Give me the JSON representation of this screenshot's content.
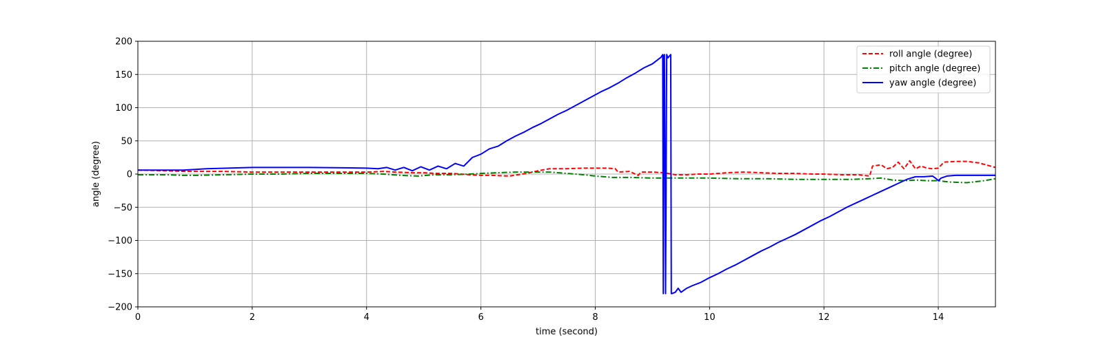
{
  "chart_data": {
    "type": "line",
    "title": "",
    "xlabel": "time (second)",
    "ylabel": "angle (degree)",
    "xlim": [
      0,
      15
    ],
    "ylim": [
      -200,
      200
    ],
    "xticks": [
      0,
      2,
      4,
      6,
      8,
      10,
      12,
      14
    ],
    "yticks": [
      -200,
      -150,
      -100,
      -50,
      0,
      50,
      100,
      150,
      200
    ],
    "xtick_labels": [
      "0",
      "2",
      "4",
      "6",
      "8",
      "10",
      "12",
      "14"
    ],
    "ytick_labels": [
      "−200",
      "−150",
      "−100",
      "−50",
      "0",
      "50",
      "100",
      "150",
      "200"
    ],
    "grid": true,
    "legend_position": "top-right",
    "series": [
      {
        "name": "roll angle (degree)",
        "color": "#ff0000",
        "style": "dashed",
        "x": [
          0,
          0.5,
          0.8,
          1.0,
          1.5,
          2.0,
          2.5,
          3.0,
          3.5,
          4.0,
          4.3,
          4.5,
          4.8,
          5.0,
          5.2,
          5.5,
          5.8,
          6.0,
          6.2,
          6.5,
          6.8,
          7.0,
          7.2,
          7.5,
          7.8,
          8.0,
          8.2,
          8.35,
          8.4,
          8.6,
          8.75,
          8.8,
          9.0,
          9.2,
          9.4,
          9.6,
          9.8,
          10.0,
          10.3,
          10.6,
          10.9,
          11.2,
          11.5,
          11.8,
          12.0,
          12.3,
          12.6,
          12.8,
          12.85,
          13.0,
          13.1,
          13.2,
          13.3,
          13.4,
          13.5,
          13.6,
          13.7,
          13.8,
          13.9,
          14.0,
          14.1,
          14.3,
          14.5,
          14.7,
          15.0
        ],
        "y": [
          6,
          5,
          4,
          4,
          4,
          3,
          3,
          3,
          3,
          3,
          4,
          3,
          2,
          2,
          1,
          1,
          -1,
          -2,
          -2,
          -3,
          1,
          5,
          8,
          8,
          9,
          9,
          9,
          8,
          3,
          4,
          -2,
          3,
          3,
          2,
          -1,
          -1,
          0,
          0,
          2,
          3,
          2,
          1,
          1,
          0,
          0,
          -1,
          -1,
          -3,
          12,
          14,
          8,
          10,
          18,
          8,
          20,
          8,
          12,
          9,
          8,
          9,
          18,
          19,
          19,
          17,
          10
        ]
      },
      {
        "name": "pitch angle (degree)",
        "color": "#008000",
        "style": "dashdot",
        "x": [
          0,
          0.5,
          0.8,
          1.0,
          1.5,
          2.0,
          2.5,
          3.0,
          3.5,
          4.0,
          4.3,
          4.6,
          4.9,
          5.2,
          5.5,
          5.8,
          6.0,
          6.3,
          6.6,
          6.9,
          7.2,
          7.5,
          7.8,
          8.0,
          8.3,
          8.6,
          9.0,
          9.5,
          10.0,
          10.5,
          11.0,
          11.5,
          12.0,
          12.5,
          12.8,
          13.0,
          13.2,
          13.4,
          13.6,
          13.8,
          14.0,
          14.2,
          14.5,
          14.8,
          15.0
        ],
        "y": [
          -1,
          -1,
          -2,
          -2,
          -1,
          0,
          0,
          1,
          1,
          1,
          0,
          -2,
          -3,
          -1,
          -1,
          0,
          1,
          2,
          3,
          3,
          3,
          1,
          -1,
          -3,
          -5,
          -5,
          -6,
          -6,
          -6,
          -7,
          -7,
          -8,
          -8,
          -8,
          -7,
          -6,
          -9,
          -10,
          -9,
          -10,
          -10,
          -12,
          -13,
          -10,
          -7
        ]
      },
      {
        "name": "yaw angle (degree)",
        "color": "#0000ff",
        "style": "solid",
        "x": [
          0,
          0.8,
          1.2,
          2.0,
          3.0,
          4.0,
          4.2,
          4.35,
          4.5,
          4.65,
          4.8,
          4.95,
          5.1,
          5.25,
          5.4,
          5.55,
          5.7,
          5.85,
          6.0,
          6.15,
          6.3,
          6.45,
          6.6,
          6.75,
          6.9,
          7.05,
          7.2,
          7.35,
          7.5,
          7.65,
          7.8,
          7.95,
          8.1,
          8.25,
          8.4,
          8.55,
          8.7,
          8.85,
          9.0,
          9.15,
          9.18,
          9.19,
          9.2,
          9.21,
          9.23,
          9.25,
          9.27,
          9.3,
          9.32,
          9.33,
          9.34,
          9.4,
          9.45,
          9.5,
          9.6,
          9.7,
          9.85,
          10.0,
          10.15,
          10.3,
          10.45,
          10.6,
          10.75,
          10.9,
          11.05,
          11.2,
          11.35,
          11.5,
          11.65,
          11.8,
          11.95,
          12.1,
          12.25,
          12.4,
          12.55,
          12.7,
          12.85,
          13.0,
          13.15,
          13.3,
          13.45,
          13.6,
          13.75,
          13.9,
          13.95,
          14.0,
          14.05,
          14.15,
          14.3,
          14.5,
          15.0
        ],
        "y": [
          6,
          6,
          8,
          10,
          10,
          9,
          8,
          10,
          6,
          10,
          5,
          11,
          6,
          12,
          8,
          16,
          12,
          25,
          30,
          38,
          42,
          50,
          57,
          63,
          70,
          76,
          83,
          90,
          96,
          103,
          110,
          117,
          124,
          130,
          137,
          145,
          152,
          160,
          166,
          176,
          180,
          -180,
          178,
          180,
          -180,
          180,
          175,
          178,
          180,
          -180,
          -180,
          -178,
          -172,
          -178,
          -172,
          -168,
          -163,
          -156,
          -150,
          -143,
          -137,
          -130,
          -123,
          -116,
          -110,
          -103,
          -97,
          -91,
          -84,
          -77,
          -70,
          -64,
          -57,
          -50,
          -44,
          -38,
          -32,
          -26,
          -20,
          -14,
          -8,
          -4,
          -4,
          -3,
          -6,
          -10,
          -6,
          -3,
          -2,
          -2,
          -2
        ]
      }
    ]
  }
}
